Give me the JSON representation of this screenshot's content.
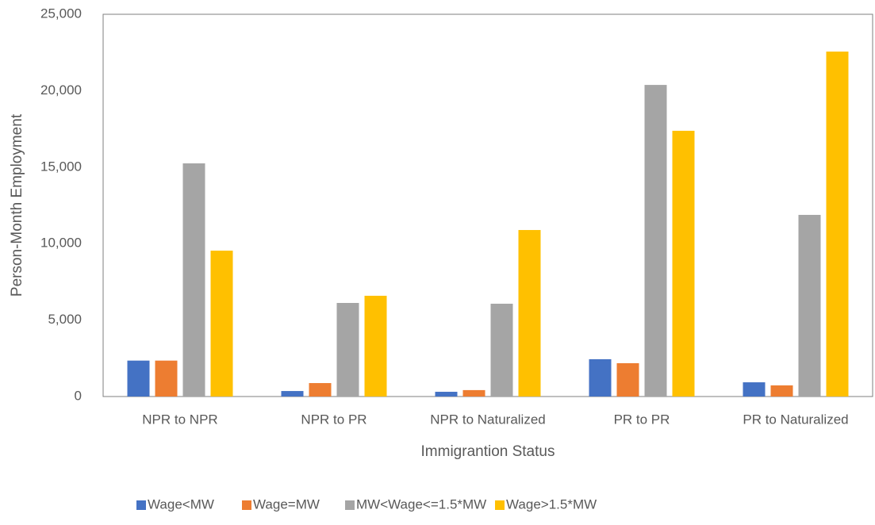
{
  "chart_data": {
    "type": "bar",
    "x_label": "Immigrantion Status",
    "y_label": "Person-Month Employment",
    "categories": [
      "NPR to NPR",
      "NPR to PR",
      "NPR to Naturalized",
      "PR to PR",
      "PR to Naturalized"
    ],
    "series": [
      {
        "name": "Wage<MW",
        "color": "#4472c4",
        "values": [
          2350,
          360,
          310,
          2440,
          930
        ]
      },
      {
        "name": "Wage=MW",
        "color": "#ed7d31",
        "values": [
          2350,
          880,
          420,
          2180,
          730
        ]
      },
      {
        "name": "MW<Wage<=1.5*MW",
        "color": "#a5a5a5",
        "values": [
          15250,
          6120,
          6070,
          20380,
          11880
        ]
      },
      {
        "name": "Wage>1.5*MW",
        "color": "#ffc000",
        "values": [
          9540,
          6590,
          10890,
          17380,
          22560
        ]
      }
    ],
    "ylim": [
      0,
      25000
    ],
    "yticks": [
      0,
      {
        "value": 5000,
        "label": "5,000"
      },
      {
        "value": 10000,
        "label": "10,000"
      },
      {
        "value": 15000,
        "label": "15,000"
      },
      {
        "value": 20000,
        "label": "20,000"
      },
      {
        "value": 25000,
        "label": "25,000"
      }
    ],
    "grid": false,
    "legend": "bottom"
  }
}
